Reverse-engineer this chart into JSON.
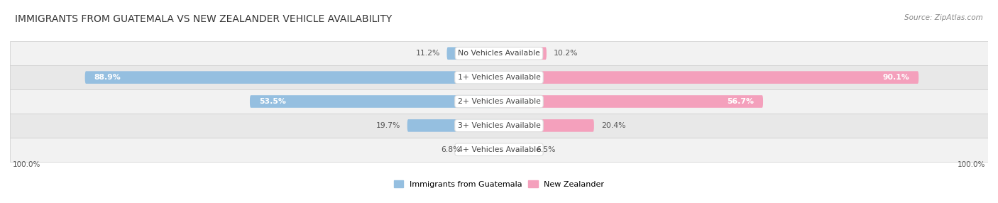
{
  "title": "IMMIGRANTS FROM GUATEMALA VS NEW ZEALANDER VEHICLE AVAILABILITY",
  "source": "Source: ZipAtlas.com",
  "categories": [
    "No Vehicles Available",
    "1+ Vehicles Available",
    "2+ Vehicles Available",
    "3+ Vehicles Available",
    "4+ Vehicles Available"
  ],
  "guatemala_values": [
    11.2,
    88.9,
    53.5,
    19.7,
    6.8
  ],
  "nz_values": [
    10.2,
    90.1,
    56.7,
    20.4,
    6.5
  ],
  "guatemala_color": "#95bfe0",
  "nz_color": "#f4a0bc",
  "row_colors": [
    "#f2f2f2",
    "#e8e8e8"
  ],
  "max_value": 100.0,
  "legend_guatemala": "Immigrants from Guatemala",
  "legend_nz": "New Zealander",
  "bar_height": 0.52,
  "figsize": [
    14.06,
    2.86
  ],
  "dpi": 100
}
